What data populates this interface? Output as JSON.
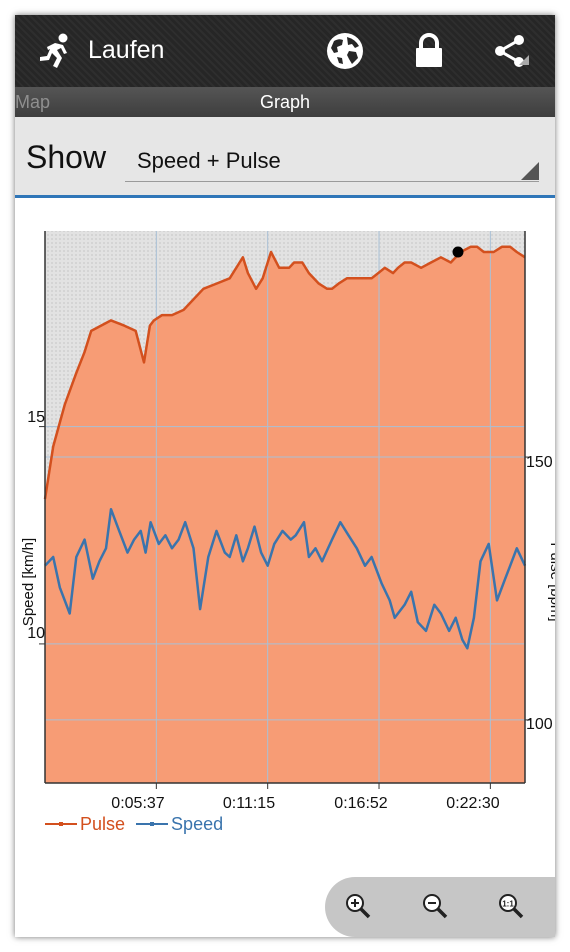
{
  "app": {
    "title": "Laufen",
    "icons": [
      "runner-icon",
      "globe-icon",
      "lock-icon",
      "share-icon"
    ]
  },
  "tabs": [
    {
      "label": "Map",
      "active": false
    },
    {
      "label": "Graph",
      "active": true
    }
  ],
  "show": {
    "label": "Show",
    "selected": "Speed + Pulse"
  },
  "colors": {
    "pulse": "#d3501e",
    "pulse_fill": "#f79c75",
    "speed": "#3a74ad",
    "divider": "#2f76b8"
  },
  "chart_data": {
    "type": "area",
    "x_ticks": [
      "0:05:37",
      "0:11:15",
      "0:16:52",
      "0:22:30"
    ],
    "x_range_seconds": [
      0,
      1455
    ],
    "left_axis": {
      "label": "Speed [km/h]",
      "ticks": [
        "15",
        "10"
      ],
      "range": [
        6.8,
        19.5
      ]
    },
    "right_axis": {
      "label": "Pulse [bpm]",
      "ticks": [
        "150",
        "100"
      ],
      "range": [
        88,
        193
      ]
    },
    "legend": [
      "Pulse",
      "Speed"
    ],
    "series": [
      {
        "name": "Pulse",
        "axis": "right",
        "x": [
          0,
          25,
          60,
          95,
          120,
          140,
          170,
          200,
          240,
          275,
          300,
          318,
          330,
          355,
          385,
          420,
          480,
          520,
          560,
          590,
          600,
          615,
          640,
          660,
          685,
          710,
          740,
          755,
          780,
          800,
          830,
          855,
          870,
          890,
          915,
          940,
          970,
          990,
          1010,
          1030,
          1055,
          1070,
          1090,
          1110,
          1140,
          1170,
          1200,
          1230,
          1260,
          1290,
          1310,
          1330,
          1360,
          1385,
          1410,
          1430,
          1455
        ],
        "y": [
          142,
          152,
          160,
          166,
          170,
          174,
          175,
          176,
          175,
          174,
          168,
          175,
          176,
          177,
          177,
          178,
          182,
          183,
          184,
          187,
          188,
          185,
          182,
          184,
          189,
          186,
          186,
          187,
          187,
          185,
          183,
          182,
          182,
          183,
          184,
          184,
          184,
          184,
          185,
          186,
          185,
          186,
          187,
          187,
          186,
          187,
          188,
          187,
          189,
          190,
          190,
          189,
          189,
          190,
          190,
          189,
          188
        ]
      },
      {
        "name": "Speed",
        "axis": "left",
        "x": [
          0,
          25,
          45,
          75,
          95,
          120,
          145,
          165,
          185,
          200,
          225,
          250,
          270,
          290,
          305,
          320,
          345,
          365,
          385,
          405,
          425,
          450,
          470,
          495,
          520,
          545,
          560,
          580,
          600,
          615,
          635,
          655,
          675,
          695,
          720,
          745,
          760,
          785,
          800,
          820,
          840,
          870,
          895,
          920,
          945,
          970,
          990,
          1020,
          1045,
          1060,
          1090,
          1110,
          1130,
          1155,
          1180,
          1200,
          1225,
          1245,
          1265,
          1280,
          1300,
          1320,
          1345,
          1370,
          1395,
          1410,
          1430,
          1455
        ],
        "y": [
          11.8,
          12.0,
          11.3,
          10.7,
          12.0,
          12.4,
          11.5,
          11.9,
          12.2,
          13.1,
          12.6,
          12.1,
          12.4,
          12.6,
          12.1,
          12.8,
          12.3,
          12.5,
          12.2,
          12.4,
          12.8,
          12.2,
          10.8,
          12.0,
          12.6,
          12.1,
          12.0,
          12.5,
          11.9,
          12.2,
          12.7,
          12.1,
          11.8,
          12.3,
          12.6,
          12.4,
          12.5,
          12.8,
          12.0,
          12.2,
          11.9,
          12.4,
          12.8,
          12.5,
          12.2,
          11.8,
          12.0,
          11.4,
          11.0,
          10.6,
          10.9,
          11.2,
          10.5,
          10.3,
          10.9,
          10.7,
          10.3,
          10.6,
          10.1,
          9.9,
          10.6,
          11.9,
          12.3,
          11.0,
          11.5,
          11.8,
          12.2,
          11.8
        ]
      }
    ],
    "grid": true
  },
  "zoom": {
    "icons": [
      "zoom-in-icon",
      "zoom-out-icon",
      "zoom-reset-icon"
    ]
  }
}
